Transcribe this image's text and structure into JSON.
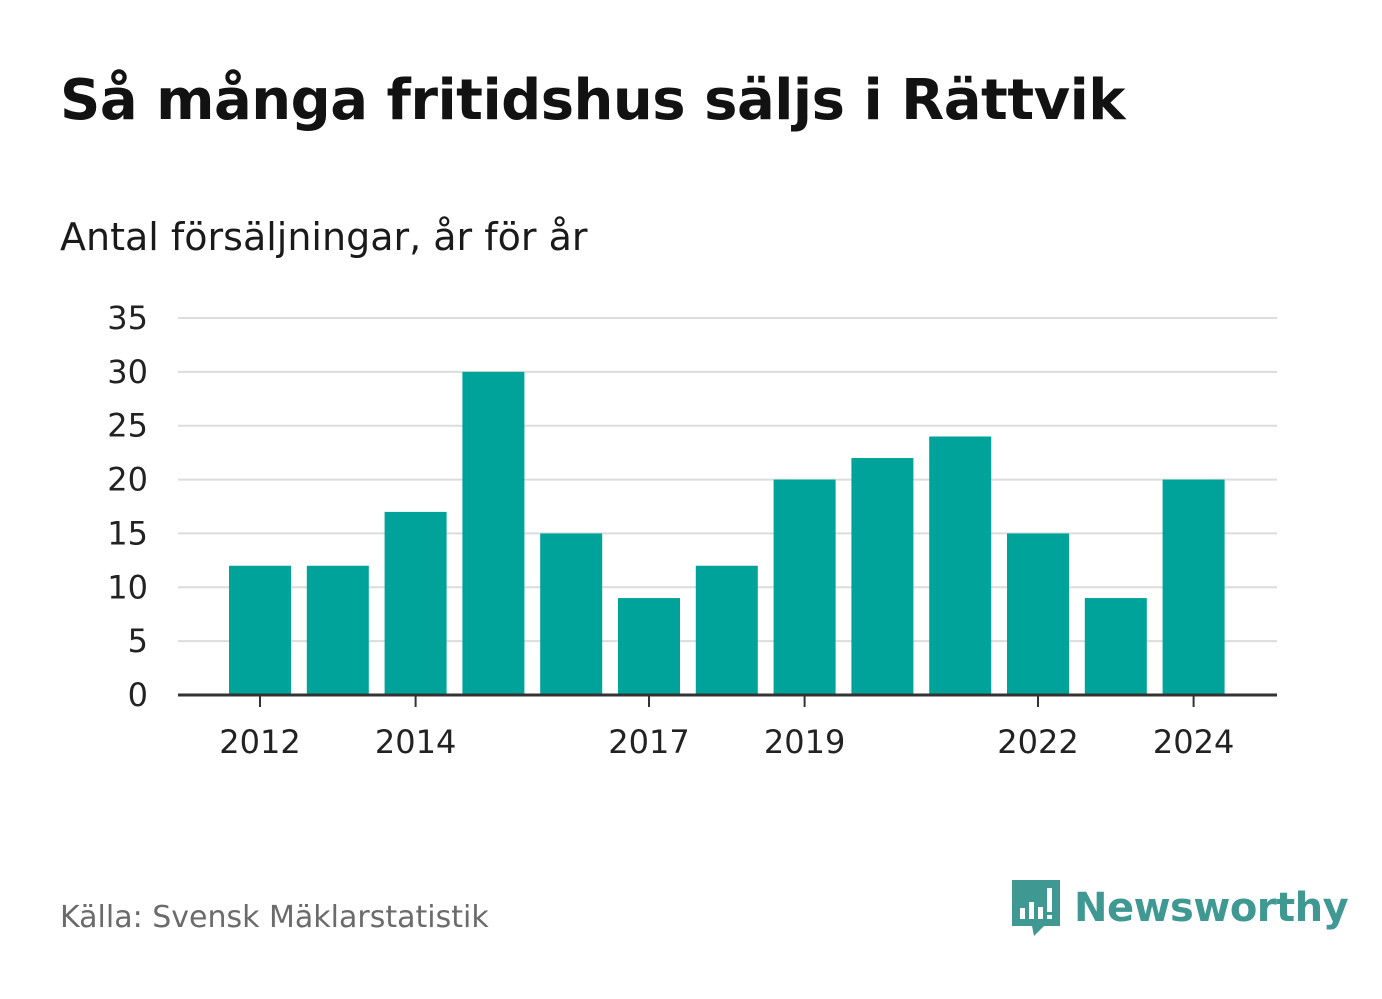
{
  "chart_data": {
    "type": "bar",
    "title": "Så många fritidshus säljs i Rättvik",
    "subtitle": "Antal försäljningar, år för år",
    "categories": [
      "2012",
      "2013",
      "2014",
      "2015",
      "2016",
      "2017",
      "2018",
      "2019",
      "2020",
      "2021",
      "2022",
      "2023",
      "2024"
    ],
    "x_tick_labels": [
      "2012",
      "2014",
      "2017",
      "2019",
      "2022",
      "2024"
    ],
    "values": [
      12,
      12,
      17,
      30,
      15,
      9,
      12,
      20,
      22,
      24,
      15,
      9,
      20
    ],
    "ylim": [
      0,
      35
    ],
    "y_ticks": [
      0,
      5,
      10,
      15,
      20,
      25,
      30,
      35
    ],
    "grid": true,
    "bar_color": "#00a39a"
  },
  "source": "Källa: Svensk Mäklarstatistik",
  "brand": {
    "name": "Newsworthy",
    "icon": "newsworthy-logo-icon",
    "color": "#3f9891"
  }
}
